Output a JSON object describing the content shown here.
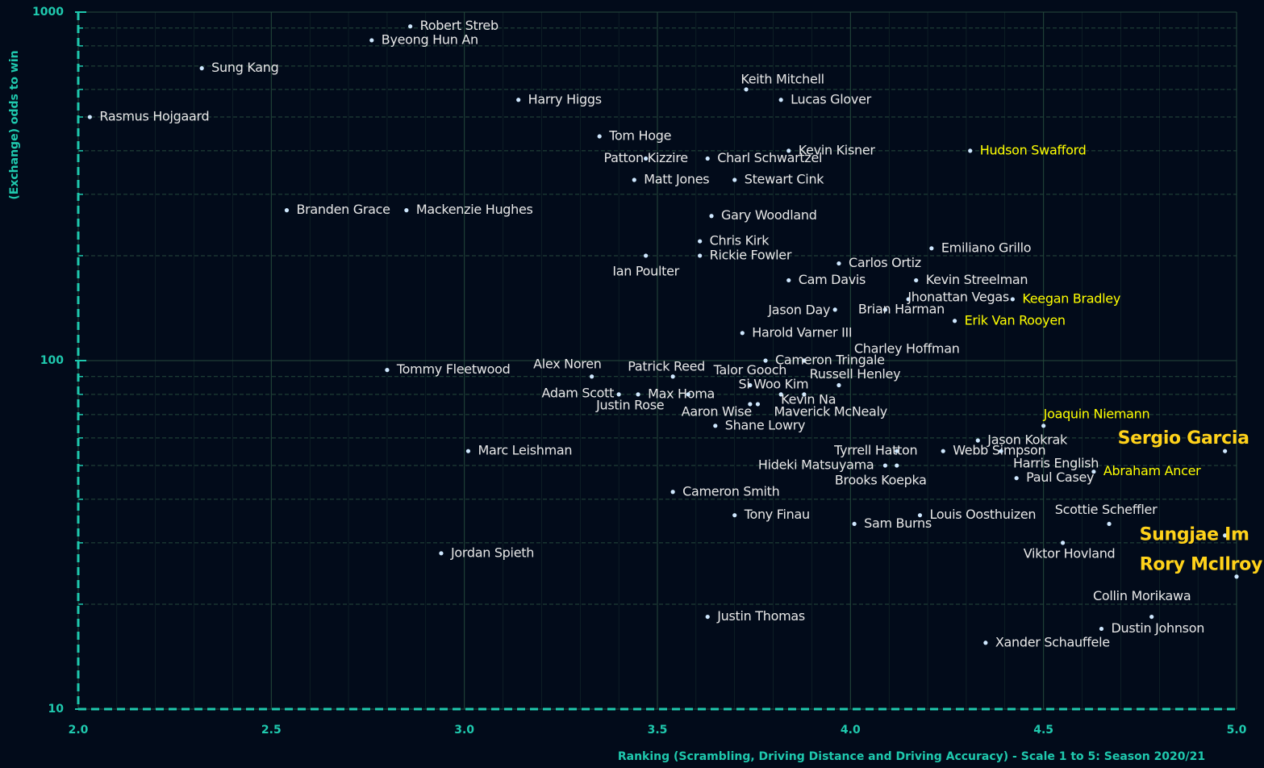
{
  "chart_data": {
    "type": "scatter",
    "x_label": "Ranking (Scrambling, Driving Distance and Driving Accuracy) - Scale 1 to 5: Season 2020/21",
    "y_label": "(Exchange) odds to win",
    "y_log": true,
    "grid": true,
    "xlim": [
      2,
      5
    ],
    "xticks": [
      {
        "value": 2,
        "label": "2.0"
      },
      2.5,
      {
        "value": 3,
        "label": "3.0"
      },
      3.5,
      {
        "value": 4,
        "label": "4.0"
      },
      4.5,
      {
        "value": 5,
        "label": "5.0"
      }
    ],
    "x_minor_ticks": [
      2.1,
      2.2,
      2.3,
      2.4,
      2.6,
      2.7,
      2.8,
      2.9,
      3.1,
      3.2,
      3.3,
      3.4,
      3.6,
      3.7,
      3.8,
      3.9,
      4.1,
      4.2,
      4.3,
      4.4,
      4.6,
      4.7,
      4.8,
      4.9
    ],
    "ylim": [
      10,
      1000
    ],
    "yticks": [
      10,
      100,
      1000
    ],
    "y_minor_ticks": [
      20,
      30,
      40,
      50,
      60,
      70,
      80,
      90,
      200,
      300,
      400,
      500,
      600,
      700,
      800,
      900
    ],
    "dot_color": "#cfe8ff",
    "axis_color": "#1fc9ae",
    "grid_color": "#254a3c",
    "labels": [
      "Robert Streb",
      "Byeong Hun An",
      "Sung Kang",
      "Harry Higgs",
      "Keith Mitchell",
      "Lucas Glover",
      "Rasmus Hojgaard",
      "Tom Hoge",
      "Kevin Kisner",
      "Hudson Swafford",
      "Patton Kizzire",
      "Charl Schwartzel",
      "Matt Jones",
      "Stewart Cink",
      "Branden Grace",
      "Mackenzie Hughes",
      "Gary Woodland",
      "Chris Kirk",
      "Emiliano Grillo",
      "Ian Poulter",
      "Rickie Fowler",
      "Carlos Ortiz",
      "Cam Davis",
      "Kevin Streelman",
      "Jhonattan Vegas",
      "Keegan Bradley",
      "Jason Day",
      "Brian Harman",
      "Erik Van Rooyen",
      "Harold Varner III",
      "Charley Hoffman",
      "Cameron Tringale",
      "Tommy Fleetwood",
      "Alex Noren",
      "Patrick Reed",
      "Talor Gooch",
      "Russell Henley",
      "Si Woo Kim",
      "Kevin Na",
      "Maverick McNealy",
      "Aaron Wise",
      "Max Homa",
      "Justin Rose",
      "Adam Scott",
      "Shane Lowry",
      "Joaquin Niemann",
      "Jason Kokrak",
      "Marc Leishman",
      "Tyrrell Hatton",
      "Webb Simpson",
      "Harris English",
      "Hideki Matsuyama",
      "Brooks Koepka",
      "Abraham Ancer",
      "Paul Casey",
      "Cameron Smith",
      "Tony Finau",
      "Louis Oosthuizen",
      "Sam Burns",
      "Scottie Scheffler",
      "Viktor Hovland",
      "Jordan Spieth",
      "Collin Morikawa",
      "Justin Thomas",
      "Dustin Johnson",
      "Xander Schauffele",
      "Sergio Garcia",
      "Sungjae Im",
      "Rory McIlroy"
    ],
    "x": [
      2.86,
      2.76,
      2.32,
      3.14,
      3.73,
      3.82,
      2.03,
      3.35,
      3.84,
      4.31,
      3.47,
      3.63,
      3.44,
      3.7,
      2.54,
      2.85,
      3.64,
      3.61,
      4.21,
      3.47,
      3.61,
      3.97,
      3.84,
      4.17,
      4.15,
      4.42,
      3.96,
      4.09,
      4.27,
      3.72,
      3.88,
      3.78,
      2.8,
      3.33,
      3.54,
      3.74,
      3.97,
      3.88,
      3.82,
      3.76,
      3.74,
      3.45,
      3.58,
      3.4,
      3.65,
      4.5,
      4.33,
      3.01,
      4.12,
      4.24,
      4.39,
      4.09,
      4.12,
      4.63,
      4.43,
      3.54,
      3.7,
      4.18,
      4.01,
      4.67,
      4.55,
      2.94,
      4.78,
      3.63,
      4.65,
      4.35,
      4.97,
      4.97,
      5.0
    ],
    "values": [
      910,
      830,
      690,
      560,
      600,
      560,
      500,
      440,
      400,
      400,
      380,
      380,
      330,
      330,
      270,
      270,
      260,
      220,
      210,
      200,
      200,
      190,
      170,
      170,
      150,
      150,
      140,
      140,
      130,
      120,
      100,
      100,
      94,
      90,
      90,
      85,
      85,
      80,
      80,
      75,
      75,
      80,
      80,
      80,
      65,
      65,
      59,
      55,
      55,
      55,
      55,
      50,
      50,
      48,
      46,
      42,
      36,
      36,
      34,
      34,
      30,
      28,
      18.4,
      18.4,
      17,
      15.5,
      55,
      31.5,
      24
    ],
    "label_colors": [
      "#e8e8e8",
      "#e8e8e8",
      "#e8e8e8",
      "#e8e8e8",
      "#e8e8e8",
      "#e8e8e8",
      "#e8e8e8",
      "#e8e8e8",
      "#e8e8e8",
      "#ffff00",
      "#e8e8e8",
      "#e8e8e8",
      "#e8e8e8",
      "#e8e8e8",
      "#e8e8e8",
      "#e8e8e8",
      "#e8e8e8",
      "#e8e8e8",
      "#e8e8e8",
      "#e8e8e8",
      "#e8e8e8",
      "#e8e8e8",
      "#e8e8e8",
      "#e8e8e8",
      "#e8e8e8",
      "#ffff00",
      "#e8e8e8",
      "#e8e8e8",
      "#ffff00",
      "#e8e8e8",
      "#e8e8e8",
      "#e8e8e8",
      "#e8e8e8",
      "#e8e8e8",
      "#e8e8e8",
      "#e8e8e8",
      "#e8e8e8",
      "#e8e8e8",
      "#e8e8e8",
      "#e8e8e8",
      "#e8e8e8",
      "#e8e8e8",
      "#e8e8e8",
      "#e8e8e8",
      "#e8e8e8",
      "#ffff00",
      "#e8e8e8",
      "#e8e8e8",
      "#e8e8e8",
      "#e8e8e8",
      "#e8e8e8",
      "#e8e8e8",
      "#e8e8e8",
      "#ffff00",
      "#e8e8e8",
      "#e8e8e8",
      "#e8e8e8",
      "#e8e8e8",
      "#e8e8e8",
      "#e8e8e8",
      "#e8e8e8",
      "#e8e8e8",
      "#e8e8e8",
      "#e8e8e8",
      "#e8e8e8",
      "#e8e8e8",
      "#ffd21a",
      "#ffd21a",
      "#ffd21a"
    ],
    "featured_color": "#ffd21a"
  }
}
